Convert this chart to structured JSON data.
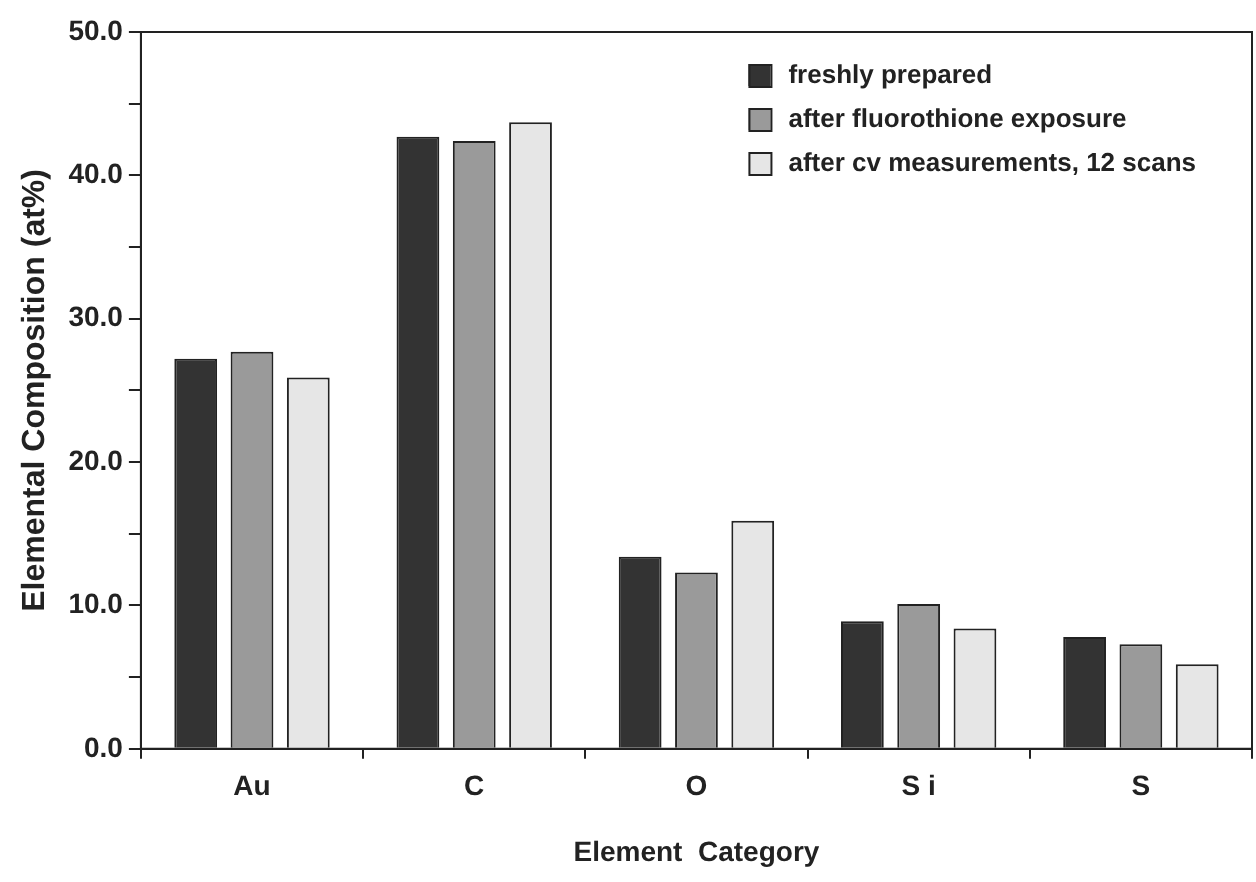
{
  "chart_data": {
    "type": "bar",
    "xlabel": "Element  Category",
    "ylabel": "Elemental Composition (at%)",
    "categories": [
      "Au",
      "C",
      "O",
      "S i",
      "S"
    ],
    "series": [
      {
        "name": "freshly prepared",
        "color": "#333333",
        "values": [
          27.2,
          42.7,
          13.4,
          8.9,
          7.8
        ]
      },
      {
        "name": "after fluorothione exposure",
        "color": "#9a9a9a",
        "values": [
          27.7,
          42.4,
          12.3,
          10.1,
          7.3
        ]
      },
      {
        "name": "after cv measurements, 12 scans",
        "color": "#e6e6e6",
        "values": [
          25.9,
          43.7,
          15.9,
          8.4,
          5.9
        ]
      }
    ],
    "ylim": [
      0,
      50
    ],
    "yticks": [
      {
        "value": 0,
        "label": "0.0"
      },
      {
        "value": 5,
        "label": null
      },
      {
        "value": 10,
        "label": "10.0"
      },
      {
        "value": 15,
        "label": null
      },
      {
        "value": 20,
        "label": "20.0"
      },
      {
        "value": 25,
        "label": null
      },
      {
        "value": 30,
        "label": "30.0"
      },
      {
        "value": 35,
        "label": null
      },
      {
        "value": 40,
        "label": "40.0"
      },
      {
        "value": 45,
        "label": null
      },
      {
        "value": 50,
        "label": "50.0"
      }
    ],
    "grid": false,
    "legend": "top right"
  }
}
